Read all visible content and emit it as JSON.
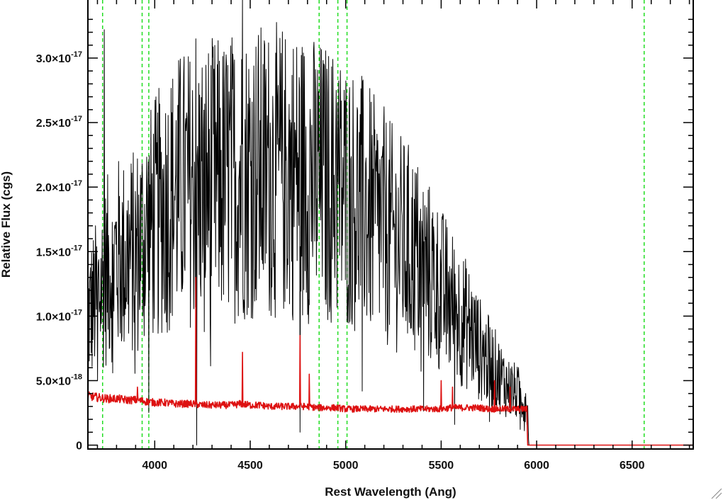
{
  "chart_data": {
    "type": "line",
    "title": "",
    "xlabel": "Rest Wavelength (Ang)",
    "ylabel": "Relative Flux (cgs)",
    "xlim": [
      3650,
      6820
    ],
    "ylim": [
      -3e-19,
      3.45e-17
    ],
    "grid": false,
    "legend": "none",
    "x_ticks": [
      4000,
      4500,
      5000,
      5500,
      6000,
      6500
    ],
    "x_tick_labels": [
      "4000",
      "4500",
      "5000",
      "5500",
      "6000",
      "6500"
    ],
    "y_ticks": [
      0,
      5e-18,
      1e-17,
      1.5e-17,
      2e-17,
      2.5e-17,
      3e-17
    ],
    "y_tick_labels": [
      {
        "mantissa": "0",
        "exponent": ""
      },
      {
        "mantissa": "5.0×10",
        "exponent": "-18"
      },
      {
        "mantissa": "1.0×10",
        "exponent": "-17"
      },
      {
        "mantissa": "1.5×10",
        "exponent": "-17"
      },
      {
        "mantissa": "2.0×10",
        "exponent": "-17"
      },
      {
        "mantissa": "2.5×10",
        "exponent": "-17"
      },
      {
        "mantissa": "3.0×10",
        "exponent": "-17"
      }
    ],
    "reference_lines_x": [
      3727,
      3934,
      3969,
      4861,
      4959,
      5007,
      6563
    ],
    "series": [
      {
        "color": "#000000",
        "style": "noisy",
        "x": [
          3650,
          3700,
          3750,
          3800,
          3850,
          3900,
          3950,
          4000,
          4050,
          4100,
          4150,
          4200,
          4250,
          4300,
          4350,
          4400,
          4450,
          4500,
          4550,
          4600,
          4650,
          4700,
          4750,
          4800,
          4850,
          4900,
          4950,
          5000,
          5050,
          5100,
          5150,
          5200,
          5250,
          5300,
          5350,
          5400,
          5450,
          5500,
          5550,
          5600,
          5650,
          5700,
          5750,
          5800,
          5850,
          5900,
          5950,
          5960,
          6000,
          6500,
          6820
        ],
        "y": [
          1e-17,
          1.15e-17,
          1.35e-17,
          1.45e-17,
          1.45e-17,
          1.5e-17,
          1.65e-17,
          1.75e-17,
          1.85e-17,
          1.95e-17,
          2e-17,
          2e-17,
          2.05e-17,
          2.05e-17,
          2.05e-17,
          2.08e-17,
          2.1e-17,
          2.12e-17,
          2.12e-17,
          2.12e-17,
          2.12e-17,
          2.12e-17,
          2.1e-17,
          2.08e-17,
          2.05e-17,
          2.02e-17,
          2e-17,
          1.95e-17,
          1.9e-17,
          1.85e-17,
          1.75e-17,
          1.7e-17,
          1.6e-17,
          1.55e-17,
          1.5e-17,
          1.4e-17,
          1.3e-17,
          1.2e-17,
          1.1e-17,
          1e-17,
          9e-18,
          7.5e-18,
          6.5e-18,
          5.5e-18,
          4.5e-18,
          4e-18,
          3.5e-18,
          0.0,
          0.0,
          0.0,
          0.0
        ],
        "spikes": [
          [
            3735,
            3.22e-17
          ],
          [
            4215,
            3.15e-17
          ],
          [
            4460,
            3.5e-17
          ],
          [
            4760,
            1e-18
          ],
          [
            4640,
            2.85e-17
          ],
          [
            4680,
            2.75e-17
          ],
          [
            4880,
            2.8e-17
          ],
          [
            4950,
            2.75e-17
          ],
          [
            4220,
            0.0
          ],
          [
            3700,
            5e-18
          ]
        ]
      },
      {
        "color": "#dd1111",
        "style": "noise-series",
        "x": [
          3650,
          3700,
          3750,
          3800,
          3850,
          3900,
          3950,
          4000,
          4050,
          4100,
          4150,
          4200,
          4250,
          4300,
          4350,
          4400,
          4450,
          4500,
          4550,
          4600,
          4650,
          4700,
          4750,
          4800,
          4850,
          4900,
          4950,
          5000,
          5050,
          5100,
          5150,
          5200,
          5250,
          5300,
          5350,
          5400,
          5450,
          5500,
          5550,
          5600,
          5650,
          5700,
          5750,
          5800,
          5850,
          5900,
          5950,
          5952,
          5955,
          6000,
          6500,
          6820
        ],
        "y": [
          3.8e-18,
          3.7e-18,
          3.6e-18,
          3.6e-18,
          3.5e-18,
          3.5e-18,
          3.4e-18,
          3.3e-18,
          3.3e-18,
          3.2e-18,
          3.2e-18,
          3.2e-18,
          3.1e-18,
          3.1e-18,
          3.1e-18,
          3.1e-18,
          3.2e-18,
          3.1e-18,
          3.1e-18,
          3e-18,
          3e-18,
          3e-18,
          3e-18,
          3e-18,
          2.9e-18,
          2.9e-18,
          2.9e-18,
          2.8e-18,
          2.8e-18,
          2.8e-18,
          2.8e-18,
          2.8e-18,
          2.8e-18,
          2.8e-18,
          2.8e-18,
          2.8e-18,
          2.8e-18,
          2.8e-18,
          2.9e-18,
          2.9e-18,
          2.9e-18,
          2.9e-18,
          2.8e-18,
          2.8e-18,
          2.8e-18,
          2.8e-18,
          2.8e-18,
          0.0,
          0.0,
          0.0,
          0.0,
          0.0
        ],
        "spikes": [
          [
            4215,
            1.3e-17
          ],
          [
            4460,
            7.2e-18
          ],
          [
            4760,
            8.5e-18
          ],
          [
            4810,
            5.5e-18
          ],
          [
            5500,
            5e-18
          ],
          [
            5560,
            4.5e-18
          ],
          [
            5780,
            5e-18
          ],
          [
            5860,
            4.5e-18
          ],
          [
            3910,
            4.5e-18
          ]
        ]
      }
    ]
  }
}
